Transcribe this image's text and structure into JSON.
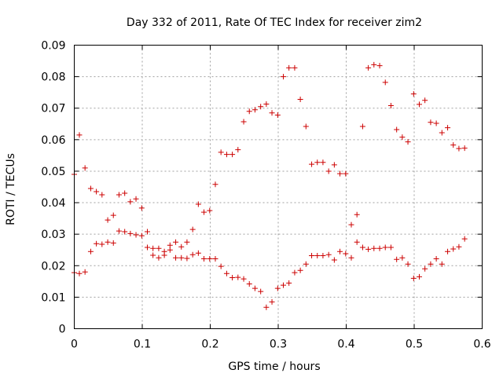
{
  "chart_data": {
    "type": "scatter",
    "title": "Day 332 of 2011, Rate Of TEC Index for receiver zim2",
    "xlabel": "GPS time / hours",
    "ylabel": "ROTI / TECUs",
    "xlim": [
      0,
      0.6
    ],
    "ylim": [
      0,
      0.09
    ],
    "xticks": [
      0,
      0.1,
      0.2,
      0.3,
      0.4,
      0.5,
      0.6
    ],
    "xtick_labels": [
      "0",
      "0.1",
      "0.2",
      "0.3",
      "0.4",
      "0.5",
      "0.6"
    ],
    "yticks": [
      0,
      0.01,
      0.02,
      0.03,
      0.04,
      0.05,
      0.06,
      0.07,
      0.08,
      0.09
    ],
    "ytick_labels": [
      "0",
      "0.01",
      "0.02",
      "0.03",
      "0.04",
      "0.05",
      "0.06",
      "0.07",
      "0.08",
      "0.09"
    ],
    "grid": true,
    "marker": "plus",
    "color": "#cc0000",
    "series": [
      {
        "points": [
          [
            0.0,
            0.0178
          ],
          [
            0.0,
            0.049
          ],
          [
            0.0075,
            0.0175
          ],
          [
            0.0075,
            0.0615
          ],
          [
            0.0158,
            0.018
          ],
          [
            0.0158,
            0.051
          ],
          [
            0.0242,
            0.0245
          ],
          [
            0.0242,
            0.0445
          ],
          [
            0.0325,
            0.027
          ],
          [
            0.0325,
            0.0435
          ],
          [
            0.0408,
            0.0268
          ],
          [
            0.0408,
            0.0425
          ],
          [
            0.0492,
            0.0345
          ],
          [
            0.0492,
            0.0275
          ],
          [
            0.0575,
            0.036
          ],
          [
            0.0575,
            0.0272
          ],
          [
            0.0658,
            0.031
          ],
          [
            0.0658,
            0.0425
          ],
          [
            0.0742,
            0.0308
          ],
          [
            0.0742,
            0.043
          ],
          [
            0.0825,
            0.0403
          ],
          [
            0.0825,
            0.0302
          ],
          [
            0.0908,
            0.0412
          ],
          [
            0.0908,
            0.0298
          ],
          [
            0.0992,
            0.0383
          ],
          [
            0.0992,
            0.0295
          ],
          [
            0.1075,
            0.0308
          ],
          [
            0.1075,
            0.0258
          ],
          [
            0.1158,
            0.0233
          ],
          [
            0.1158,
            0.0255
          ],
          [
            0.1242,
            0.0225
          ],
          [
            0.1242,
            0.0255
          ],
          [
            0.1325,
            0.0233
          ],
          [
            0.1325,
            0.0245
          ],
          [
            0.1408,
            0.025
          ],
          [
            0.1408,
            0.0265
          ],
          [
            0.1492,
            0.0225
          ],
          [
            0.1492,
            0.0275
          ],
          [
            0.1575,
            0.0225
          ],
          [
            0.1575,
            0.026
          ],
          [
            0.1658,
            0.0223
          ],
          [
            0.1658,
            0.0275
          ],
          [
            0.1742,
            0.0235
          ],
          [
            0.1742,
            0.0315
          ],
          [
            0.1825,
            0.0395
          ],
          [
            0.1825,
            0.024
          ],
          [
            0.1908,
            0.037
          ],
          [
            0.1908,
            0.0222
          ],
          [
            0.1992,
            0.0375
          ],
          [
            0.1992,
            0.0222
          ],
          [
            0.2075,
            0.0458
          ],
          [
            0.2075,
            0.0222
          ],
          [
            0.2158,
            0.056
          ],
          [
            0.2158,
            0.0198
          ],
          [
            0.2242,
            0.0553
          ],
          [
            0.2242,
            0.0175
          ],
          [
            0.2325,
            0.0553
          ],
          [
            0.2325,
            0.0162
          ],
          [
            0.2408,
            0.0568
          ],
          [
            0.2408,
            0.0163
          ],
          [
            0.2492,
            0.0657
          ],
          [
            0.2492,
            0.0158
          ],
          [
            0.2575,
            0.069
          ],
          [
            0.2575,
            0.0142
          ],
          [
            0.2658,
            0.0695
          ],
          [
            0.2658,
            0.0128
          ],
          [
            0.2742,
            0.0705
          ],
          [
            0.2742,
            0.0118
          ],
          [
            0.2825,
            0.0713
          ],
          [
            0.2825,
            0.0068
          ],
          [
            0.2908,
            0.0685
          ],
          [
            0.2908,
            0.0085
          ],
          [
            0.2992,
            0.0678
          ],
          [
            0.2992,
            0.0128
          ],
          [
            0.3075,
            0.08
          ],
          [
            0.3075,
            0.0138
          ],
          [
            0.3158,
            0.0828
          ],
          [
            0.3158,
            0.0145
          ],
          [
            0.3242,
            0.0828
          ],
          [
            0.3242,
            0.0178
          ],
          [
            0.3325,
            0.0728
          ],
          [
            0.3325,
            0.0185
          ],
          [
            0.3408,
            0.0642
          ],
          [
            0.3408,
            0.0205
          ],
          [
            0.3492,
            0.0522
          ],
          [
            0.3492,
            0.0232
          ],
          [
            0.3575,
            0.0528
          ],
          [
            0.3575,
            0.0232
          ],
          [
            0.3658,
            0.0528
          ],
          [
            0.3658,
            0.0232
          ],
          [
            0.3742,
            0.05
          ],
          [
            0.3742,
            0.0235
          ],
          [
            0.3825,
            0.052
          ],
          [
            0.3825,
            0.0218
          ],
          [
            0.3908,
            0.0492
          ],
          [
            0.3908,
            0.0245
          ],
          [
            0.3992,
            0.0492
          ],
          [
            0.3992,
            0.0238
          ],
          [
            0.4075,
            0.033
          ],
          [
            0.4075,
            0.0225
          ],
          [
            0.4158,
            0.0362
          ],
          [
            0.4158,
            0.0275
          ],
          [
            0.4242,
            0.0642
          ],
          [
            0.4242,
            0.0258
          ],
          [
            0.4325,
            0.0828
          ],
          [
            0.4325,
            0.0252
          ],
          [
            0.4408,
            0.0838
          ],
          [
            0.4408,
            0.0255
          ],
          [
            0.4492,
            0.0835
          ],
          [
            0.4492,
            0.0255
          ],
          [
            0.4575,
            0.0782
          ],
          [
            0.4575,
            0.0258
          ],
          [
            0.4658,
            0.0708
          ],
          [
            0.4658,
            0.0258
          ],
          [
            0.4742,
            0.0632
          ],
          [
            0.4742,
            0.022
          ],
          [
            0.4825,
            0.0608
          ],
          [
            0.4825,
            0.0225
          ],
          [
            0.4908,
            0.0593
          ],
          [
            0.4908,
            0.0205
          ],
          [
            0.4992,
            0.0745
          ],
          [
            0.4992,
            0.016
          ],
          [
            0.5075,
            0.0712
          ],
          [
            0.5075,
            0.0165
          ],
          [
            0.5158,
            0.0725
          ],
          [
            0.5158,
            0.019
          ],
          [
            0.5242,
            0.0655
          ],
          [
            0.5242,
            0.0205
          ],
          [
            0.5325,
            0.0652
          ],
          [
            0.5325,
            0.0222
          ],
          [
            0.5408,
            0.0622
          ],
          [
            0.5408,
            0.0205
          ],
          [
            0.5492,
            0.0638
          ],
          [
            0.5492,
            0.0245
          ],
          [
            0.5575,
            0.0583
          ],
          [
            0.5575,
            0.0253
          ],
          [
            0.5658,
            0.0572
          ],
          [
            0.5658,
            0.026
          ],
          [
            0.5742,
            0.0573
          ],
          [
            0.5742,
            0.0285
          ]
        ]
      }
    ]
  }
}
